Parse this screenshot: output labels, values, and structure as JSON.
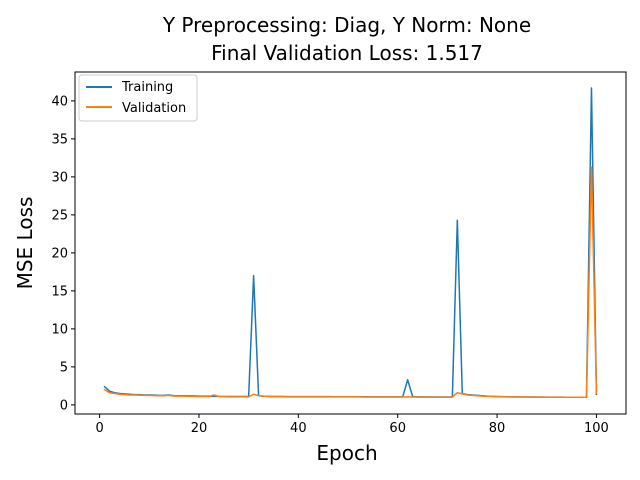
{
  "chart_data": {
    "type": "line",
    "title_line1": "Y Preprocessing: Diag, Y Norm: None",
    "title_line2": "Final Validation Loss: 1.517",
    "xlabel": "Epoch",
    "ylabel": "MSE Loss",
    "xlim": [
      -4.95,
      105.95
    ],
    "ylim": [
      -1.2,
      43.8
    ],
    "xticks": [
      0,
      20,
      40,
      60,
      80,
      100
    ],
    "yticks": [
      0,
      5,
      10,
      15,
      20,
      25,
      30,
      35,
      40
    ],
    "grid": false,
    "legend_position": "top-left",
    "series": [
      {
        "name": "Training",
        "color": "#1f77b4",
        "points": [
          [
            1,
            2.4
          ],
          [
            2,
            1.8
          ],
          [
            3,
            1.6
          ],
          [
            4,
            1.5
          ],
          [
            5,
            1.45
          ],
          [
            6,
            1.4
          ],
          [
            7,
            1.35
          ],
          [
            8,
            1.35
          ],
          [
            9,
            1.3
          ],
          [
            10,
            1.3
          ],
          [
            11,
            1.28
          ],
          [
            12,
            1.25
          ],
          [
            13,
            1.25
          ],
          [
            14,
            1.3
          ],
          [
            15,
            1.2
          ],
          [
            16,
            1.2
          ],
          [
            17,
            1.2
          ],
          [
            18,
            1.18
          ],
          [
            19,
            1.18
          ],
          [
            20,
            1.15
          ],
          [
            21,
            1.15
          ],
          [
            22,
            1.15
          ],
          [
            23,
            1.12
          ],
          [
            24,
            1.12
          ],
          [
            25,
            1.1
          ],
          [
            26,
            1.1
          ],
          [
            27,
            1.1
          ],
          [
            28,
            1.1
          ],
          [
            29,
            1.1
          ],
          [
            30,
            1.1
          ],
          [
            31,
            17.0
          ],
          [
            32,
            1.2
          ],
          [
            33,
            1.15
          ],
          [
            34,
            1.12
          ],
          [
            35,
            1.1
          ],
          [
            36,
            1.1
          ],
          [
            37,
            1.1
          ],
          [
            38,
            1.08
          ],
          [
            39,
            1.08
          ],
          [
            40,
            1.08
          ],
          [
            41,
            1.08
          ],
          [
            42,
            1.08
          ],
          [
            43,
            1.08
          ],
          [
            44,
            1.08
          ],
          [
            45,
            1.08
          ],
          [
            46,
            1.08
          ],
          [
            47,
            1.07
          ],
          [
            48,
            1.07
          ],
          [
            49,
            1.07
          ],
          [
            50,
            1.07
          ],
          [
            51,
            1.07
          ],
          [
            52,
            1.07
          ],
          [
            53,
            1.07
          ],
          [
            54,
            1.06
          ],
          [
            55,
            1.06
          ],
          [
            56,
            1.06
          ],
          [
            57,
            1.06
          ],
          [
            58,
            1.06
          ],
          [
            59,
            1.05
          ],
          [
            60,
            1.05
          ],
          [
            61,
            1.05
          ],
          [
            62,
            3.3
          ],
          [
            63,
            1.1
          ],
          [
            64,
            1.05
          ],
          [
            65,
            1.05
          ],
          [
            66,
            1.04
          ],
          [
            67,
            1.04
          ],
          [
            68,
            1.04
          ],
          [
            69,
            1.03
          ],
          [
            70,
            1.03
          ],
          [
            71,
            1.03
          ],
          [
            72,
            24.3
          ],
          [
            73,
            1.5
          ],
          [
            74,
            1.35
          ],
          [
            75,
            1.3
          ],
          [
            76,
            1.25
          ],
          [
            77,
            1.2
          ],
          [
            78,
            1.15
          ],
          [
            79,
            1.12
          ],
          [
            80,
            1.1
          ],
          [
            81,
            1.08
          ],
          [
            82,
            1.06
          ],
          [
            83,
            1.05
          ],
          [
            84,
            1.05
          ],
          [
            85,
            1.04
          ],
          [
            86,
            1.04
          ],
          [
            87,
            1.03
          ],
          [
            88,
            1.03
          ],
          [
            89,
            1.03
          ],
          [
            90,
            1.02
          ],
          [
            91,
            1.02
          ],
          [
            92,
            1.02
          ],
          [
            93,
            1.02
          ],
          [
            94,
            1.01
          ],
          [
            95,
            1.01
          ],
          [
            96,
            1.01
          ],
          [
            97,
            1.01
          ],
          [
            98,
            1.0
          ],
          [
            99,
            41.7
          ],
          [
            100,
            1.4
          ]
        ]
      },
      {
        "name": "Validation",
        "color": "#ff7f0e",
        "points": [
          [
            1,
            2.0
          ],
          [
            2,
            1.6
          ],
          [
            3,
            1.5
          ],
          [
            4,
            1.4
          ],
          [
            5,
            1.35
          ],
          [
            6,
            1.3
          ],
          [
            7,
            1.3
          ],
          [
            8,
            1.28
          ],
          [
            9,
            1.25
          ],
          [
            10,
            1.25
          ],
          [
            11,
            1.22
          ],
          [
            12,
            1.2
          ],
          [
            13,
            1.2
          ],
          [
            14,
            1.25
          ],
          [
            15,
            1.15
          ],
          [
            16,
            1.15
          ],
          [
            17,
            1.15
          ],
          [
            18,
            1.12
          ],
          [
            19,
            1.12
          ],
          [
            20,
            1.1
          ],
          [
            21,
            1.1
          ],
          [
            22,
            1.1
          ],
          [
            23,
            1.3
          ],
          [
            24,
            1.1
          ],
          [
            25,
            1.08
          ],
          [
            26,
            1.05
          ],
          [
            27,
            1.05
          ],
          [
            28,
            1.05
          ],
          [
            29,
            1.05
          ],
          [
            30,
            1.05
          ],
          [
            31,
            1.4
          ],
          [
            32,
            1.2
          ],
          [
            33,
            1.15
          ],
          [
            34,
            1.1
          ],
          [
            35,
            1.08
          ],
          [
            36,
            1.08
          ],
          [
            37,
            1.07
          ],
          [
            38,
            1.06
          ],
          [
            39,
            1.06
          ],
          [
            40,
            1.06
          ],
          [
            41,
            1.06
          ],
          [
            42,
            1.06
          ],
          [
            43,
            1.06
          ],
          [
            44,
            1.06
          ],
          [
            45,
            1.06
          ],
          [
            46,
            1.05
          ],
          [
            47,
            1.05
          ],
          [
            48,
            1.05
          ],
          [
            49,
            1.05
          ],
          [
            50,
            1.05
          ],
          [
            51,
            1.05
          ],
          [
            52,
            1.05
          ],
          [
            53,
            1.04
          ],
          [
            54,
            1.04
          ],
          [
            55,
            1.04
          ],
          [
            56,
            1.04
          ],
          [
            57,
            1.04
          ],
          [
            58,
            1.04
          ],
          [
            59,
            1.03
          ],
          [
            60,
            1.03
          ],
          [
            61,
            1.03
          ],
          [
            62,
            1.05
          ],
          [
            63,
            1.03
          ],
          [
            64,
            1.02
          ],
          [
            65,
            1.02
          ],
          [
            66,
            1.02
          ],
          [
            67,
            1.02
          ],
          [
            68,
            1.01
          ],
          [
            69,
            1.01
          ],
          [
            70,
            1.01
          ],
          [
            71,
            1.01
          ],
          [
            72,
            1.6
          ],
          [
            73,
            1.45
          ],
          [
            74,
            1.3
          ],
          [
            75,
            1.25
          ],
          [
            76,
            1.2
          ],
          [
            77,
            1.15
          ],
          [
            78,
            1.12
          ],
          [
            79,
            1.1
          ],
          [
            80,
            1.08
          ],
          [
            81,
            1.06
          ],
          [
            82,
            1.05
          ],
          [
            83,
            1.04
          ],
          [
            84,
            1.04
          ],
          [
            85,
            1.03
          ],
          [
            86,
            1.03
          ],
          [
            87,
            1.02
          ],
          [
            88,
            1.02
          ],
          [
            89,
            1.02
          ],
          [
            90,
            1.01
          ],
          [
            91,
            1.01
          ],
          [
            92,
            1.01
          ],
          [
            93,
            1.01
          ],
          [
            94,
            1.0
          ],
          [
            95,
            1.0
          ],
          [
            96,
            1.0
          ],
          [
            97,
            1.0
          ],
          [
            98,
            1.0
          ],
          [
            99,
            31.3
          ],
          [
            100,
            1.517
          ]
        ]
      }
    ]
  }
}
